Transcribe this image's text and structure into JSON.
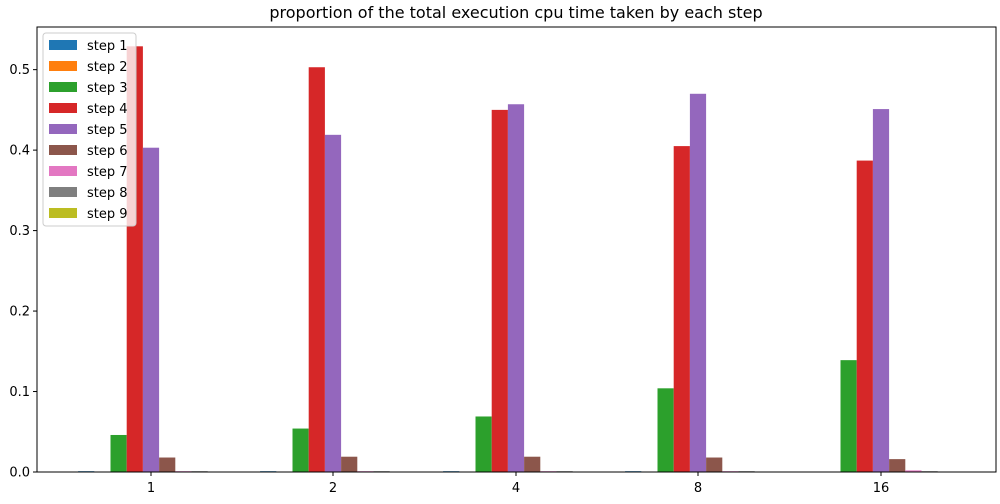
{
  "chart_data": {
    "type": "bar",
    "title": "proportion of the total execution cpu time taken by each step",
    "xlabel": "",
    "ylabel": "",
    "categories": [
      "1",
      "2",
      "4",
      "8",
      "16"
    ],
    "ylim": [
      0,
      0.553
    ],
    "yticks": [
      "0.0",
      "0.1",
      "0.2",
      "0.3",
      "0.4",
      "0.5"
    ],
    "grid": false,
    "legend_position": "top-left",
    "series": [
      {
        "name": "step 1",
        "color": "#1f77b4",
        "values": [
          0.001,
          0.001,
          0.001,
          0.001,
          0.0
        ]
      },
      {
        "name": "step 2",
        "color": "#ff7f0e",
        "values": [
          0.0,
          0.0,
          0.0,
          0.0,
          0.0
        ]
      },
      {
        "name": "step 3",
        "color": "#2ca02c",
        "values": [
          0.046,
          0.054,
          0.069,
          0.104,
          0.139
        ]
      },
      {
        "name": "step 4",
        "color": "#d62728",
        "values": [
          0.529,
          0.503,
          0.45,
          0.405,
          0.387
        ]
      },
      {
        "name": "step 5",
        "color": "#9467bd",
        "values": [
          0.403,
          0.419,
          0.457,
          0.47,
          0.451
        ]
      },
      {
        "name": "step 6",
        "color": "#8c564b",
        "values": [
          0.018,
          0.019,
          0.019,
          0.018,
          0.016
        ]
      },
      {
        "name": "step 7",
        "color": "#e377c2",
        "values": [
          0.001,
          0.001,
          0.001,
          0.001,
          0.002
        ]
      },
      {
        "name": "step 8",
        "color": "#7f7f7f",
        "values": [
          0.001,
          0.001,
          0.001,
          0.001,
          0.001
        ]
      },
      {
        "name": "step 9",
        "color": "#bcbd22",
        "values": [
          0.0,
          0.0,
          0.0,
          0.0,
          0.0
        ]
      }
    ]
  }
}
